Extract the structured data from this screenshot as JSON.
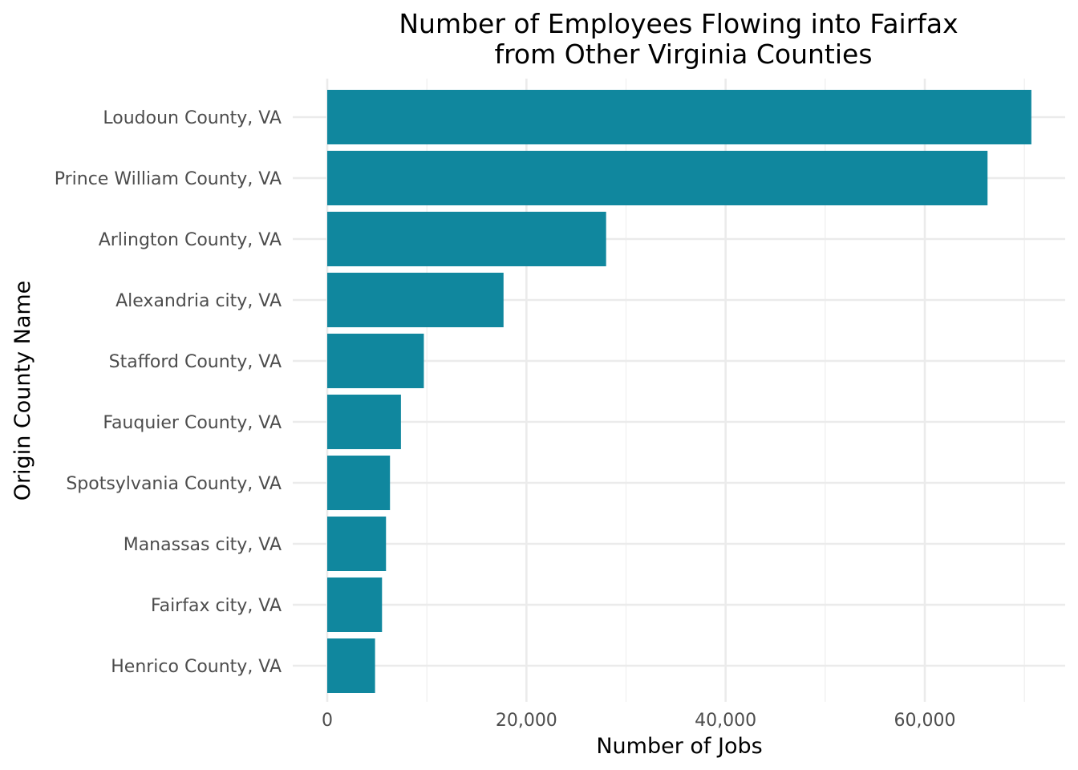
{
  "chart_data": {
    "type": "bar",
    "orientation": "horizontal",
    "title": [
      "Number of Employees Flowing into Fairfax",
      "from Other Virginia Counties"
    ],
    "xlabel": "Number of Jobs",
    "ylabel": "Origin County Name",
    "categories": [
      "Loudoun County, VA",
      "Prince William County, VA",
      "Arlington County, VA",
      "Alexandria city, VA",
      "Stafford County, VA",
      "Fauquier County, VA",
      "Spotsylvania County, VA",
      "Manassas city, VA",
      "Fairfax city, VA",
      "Henrico County, VA"
    ],
    "values": [
      70700,
      66300,
      28000,
      17700,
      9700,
      7400,
      6300,
      5900,
      5500,
      4800
    ],
    "xlim": [
      0,
      70700
    ],
    "xticks": [
      0,
      20000,
      40000,
      60000
    ],
    "xtick_labels": [
      "0",
      "20,000",
      "40,000",
      "60,000"
    ],
    "bar_color": "#10879e",
    "grid": true,
    "legend": "none"
  }
}
